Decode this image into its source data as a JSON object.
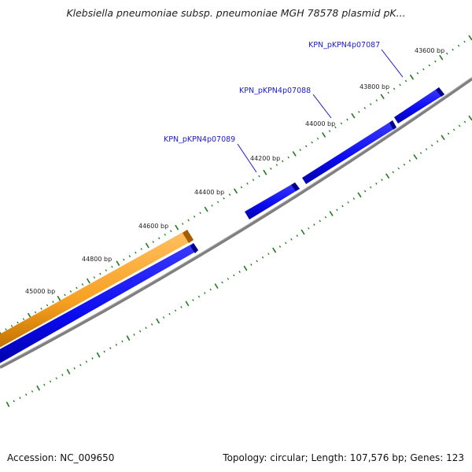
{
  "title": "Klebsiella pneumoniae subsp. pneumoniae MGH 78578 plasmid pK...",
  "footer": {
    "accession": "Accession: NC_009650",
    "summary": "Topology: circular; Length: 107,576 bp; Genes: 123"
  },
  "colors": {
    "backbone": "#808080",
    "forward_gene": "#0a0af0",
    "orange_feature": "#f7a020",
    "tick": "#1f7a1f",
    "gene_label": "#1a1acc"
  },
  "tick_labels": [
    "43600 bp",
    "43800 bp",
    "44000 bp",
    "44200 bp",
    "44400 bp",
    "44600 bp",
    "44800 bp",
    "45000 bp"
  ],
  "gene_labels": [
    "KPN_pKPN4p07087",
    "KPN_pKPN4p07088",
    "KPN_pKPN4p07089"
  ]
}
